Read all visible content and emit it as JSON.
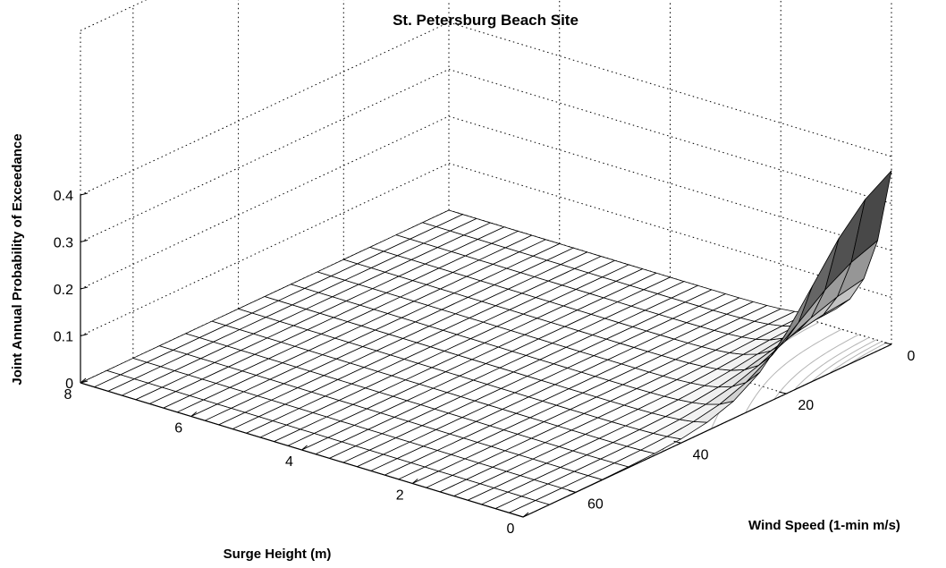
{
  "chart_data": {
    "type": "surface",
    "title": "St. Petersburg Beach Site",
    "zlabel": "Joint Annual Probability of Exceedance",
    "xlabel": "Surge Height (m)",
    "ylabel": "Wind Speed (1-min m/s)",
    "x_ticks": [
      "0",
      "2",
      "4",
      "6",
      "8"
    ],
    "y_ticks": [
      "0",
      "20",
      "40",
      "60"
    ],
    "z_ticks": [
      "0",
      "0.1",
      "0.2",
      "0.3",
      "0.4"
    ],
    "xlim": [
      0,
      8
    ],
    "ylim": [
      0,
      70
    ],
    "zlim": [
      0,
      0.4
    ],
    "grid": true,
    "surface": {
      "surge_heights": [
        0,
        0.25,
        0.5,
        0.75,
        1,
        1.25,
        1.5,
        1.75,
        2,
        2.25,
        2.5,
        2.75,
        3,
        3.25,
        3.5,
        3.75,
        4,
        4.25,
        4.5,
        4.75,
        5,
        5.25,
        5.5,
        5.75,
        6,
        6.25,
        6.5,
        6.75,
        7,
        7.25,
        7.5,
        7.75,
        8
      ],
      "wind_speeds": [
        0,
        5,
        10,
        15,
        20,
        25,
        30,
        35,
        40,
        45,
        50,
        55,
        60,
        65,
        70
      ],
      "max_probability": 0.37,
      "description_values": {
        "at_surge_0_wind_0": 0.37,
        "at_surge_0_wind_10": 0.3,
        "at_surge_0_wind_20": 0.15,
        "at_surge_0_wind_30": 0.04,
        "at_surge_0_wind_40": 0.0,
        "at_surge_1_wind_0": 0.06,
        "at_surge_2_wind_0": 0.0
      }
    }
  }
}
